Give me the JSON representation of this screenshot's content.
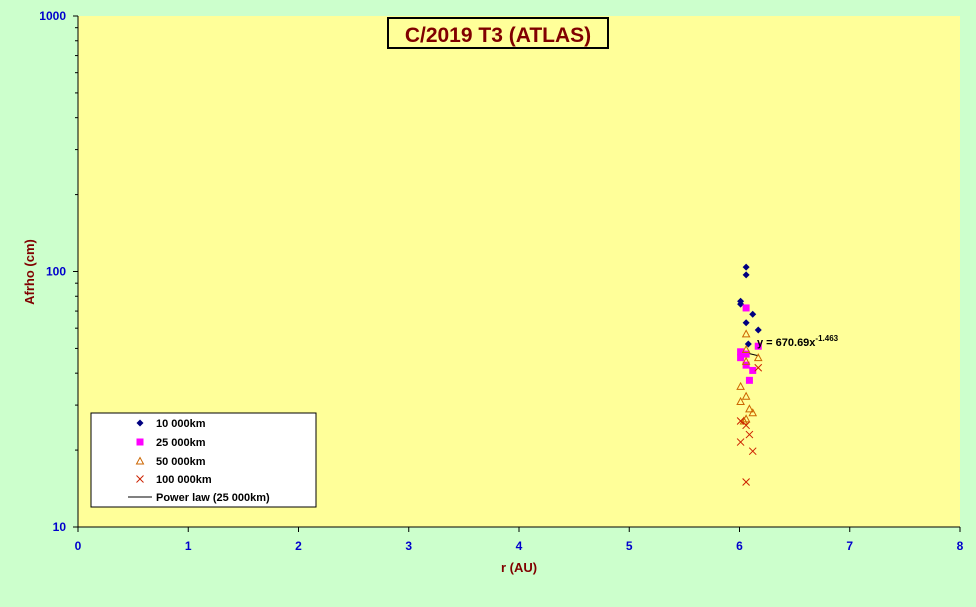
{
  "chart_data": {
    "type": "scatter",
    "title": "C/2019 T3 (ATLAS)",
    "xlabel": "r (AU)",
    "ylabel": "Afrho (cm)",
    "xlim": [
      0,
      8
    ],
    "ylim": [
      10,
      1000
    ],
    "yscale": "log",
    "x_ticks": [
      "0",
      "1",
      "2",
      "3",
      "4",
      "5",
      "6",
      "7",
      "8"
    ],
    "y_ticks": [
      "10",
      "100",
      "1000"
    ],
    "grid": false,
    "legend_position": "bottom-left",
    "colors": {
      "plot_bg": "#ffff99",
      "outer_bg": "#ccffcc",
      "axis_text": "#0000cc",
      "label_text": "#800000",
      "s1": "#000080",
      "s2": "#ff00ff",
      "s3": "#cc6600",
      "s4": "#cc2200"
    },
    "series": [
      {
        "name": "10 000km",
        "marker": "diamond",
        "color": "#000080",
        "points": [
          [
            6.06,
            104
          ],
          [
            6.06,
            97
          ],
          [
            6.01,
            76.5
          ],
          [
            6.01,
            74.5
          ],
          [
            6.12,
            68
          ],
          [
            6.06,
            63
          ],
          [
            6.17,
            59
          ],
          [
            6.08,
            52
          ]
        ]
      },
      {
        "name": "25 000km",
        "marker": "square",
        "color": "#ff00ff",
        "points": [
          [
            6.06,
            72
          ],
          [
            6.17,
            51
          ],
          [
            6.01,
            48.5
          ],
          [
            6.06,
            47.5
          ],
          [
            6.01,
            46
          ],
          [
            6.06,
            43
          ],
          [
            6.12,
            41
          ],
          [
            6.09,
            37.5
          ]
        ]
      },
      {
        "name": "50 000km",
        "marker": "triangle",
        "color": "#cc6600",
        "points": [
          [
            6.06,
            57
          ],
          [
            6.06,
            49.5
          ],
          [
            6.17,
            46
          ],
          [
            6.06,
            44.5
          ],
          [
            6.01,
            35.5
          ],
          [
            6.06,
            32.5
          ],
          [
            6.01,
            31
          ],
          [
            6.09,
            29
          ],
          [
            6.12,
            28
          ],
          [
            6.06,
            26.5
          ],
          [
            6.04,
            26
          ]
        ]
      },
      {
        "name": "100 000km",
        "marker": "x",
        "color": "#cc2200",
        "points": [
          [
            6.17,
            42
          ],
          [
            6.01,
            26
          ],
          [
            6.06,
            25
          ],
          [
            6.09,
            23
          ],
          [
            6.01,
            21.5
          ],
          [
            6.12,
            19.8
          ],
          [
            6.06,
            15
          ]
        ]
      }
    ],
    "fit": {
      "name": "Power law (25 000km)",
      "coefficient": 670.69,
      "exponent": -1.463,
      "x_range": [
        6.01,
        6.17
      ],
      "equation_base": "y = 670.69x",
      "equation_exp": "-1.463"
    }
  }
}
